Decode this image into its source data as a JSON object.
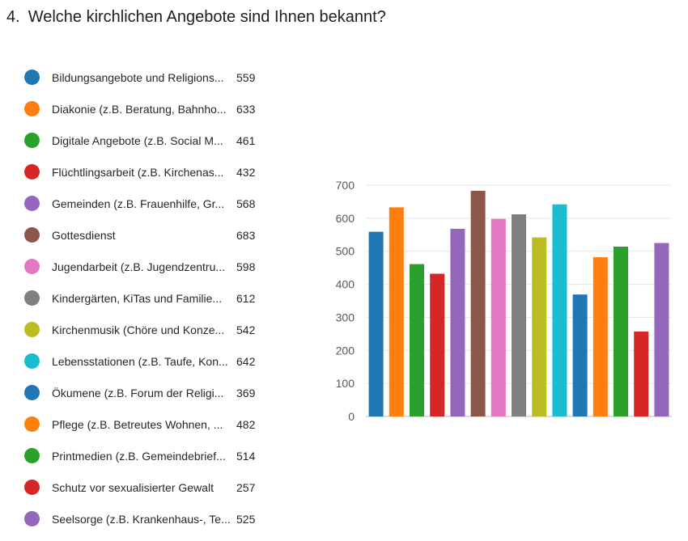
{
  "question": {
    "number": "4.",
    "text": "Welche kirchlichen Angebote sind Ihnen bekannt?"
  },
  "legend": [
    {
      "label": "Bildungsangebote und Religions...",
      "value": "559",
      "color": "#1f77b4"
    },
    {
      "label": "Diakonie (z.B. Beratung, Bahnho...",
      "value": "633",
      "color": "#ff7f0e"
    },
    {
      "label": "Digitale Angebote (z.B. Social M...",
      "value": "461",
      "color": "#2ca02c"
    },
    {
      "label": "Flüchtlingsarbeit (z.B. Kirchenas...",
      "value": "432",
      "color": "#d62728"
    },
    {
      "label": "Gemeinden (z.B. Frauenhilfe, Gr...",
      "value": "568",
      "color": "#9467bd"
    },
    {
      "label": "Gottesdienst",
      "value": "683",
      "color": "#8c564b"
    },
    {
      "label": "Jugendarbeit (z.B. Jugendzentru...",
      "value": "598",
      "color": "#e377c2"
    },
    {
      "label": "Kindergärten, KiTas und Familie...",
      "value": "612",
      "color": "#7f7f7f"
    },
    {
      "label": "Kirchenmusik (Chöre und Konze...",
      "value": "542",
      "color": "#bcbd22"
    },
    {
      "label": "Lebensstationen (z.B. Taufe, Kon...",
      "value": "642",
      "color": "#17becf"
    },
    {
      "label": "Ökumene (z.B. Forum der Religi...",
      "value": "369",
      "color": "#1f77b4"
    },
    {
      "label": "Pflege (z.B. Betreutes Wohnen, ...",
      "value": "482",
      "color": "#ff7f0e"
    },
    {
      "label": "Printmedien (z.B. Gemeindebrief...",
      "value": "514",
      "color": "#2ca02c"
    },
    {
      "label": "Schutz vor sexualisierter Gewalt",
      "value": "257",
      "color": "#d62728"
    },
    {
      "label": "Seelsorge (z.B. Krankenhaus-, Te...",
      "value": "525",
      "color": "#9467bd"
    }
  ],
  "chart_data": {
    "type": "bar",
    "title": "",
    "xlabel": "",
    "ylabel": "",
    "categories": [
      "Bildungsangebote und Religions...",
      "Diakonie (z.B. Beratung, Bahnho...",
      "Digitale Angebote (z.B. Social M...",
      "Flüchtlingsarbeit (z.B. Kirchenas...",
      "Gemeinden (z.B. Frauenhilfe, Gr...",
      "Gottesdienst",
      "Jugendarbeit (z.B. Jugendzentru...",
      "Kindergärten, KiTas und Familie...",
      "Kirchenmusik (Chöre und Konze...",
      "Lebensstationen (z.B. Taufe, Kon...",
      "Ökumene (z.B. Forum der Religi...",
      "Pflege (z.B. Betreutes Wohnen, ...",
      "Printmedien (z.B. Gemeindebrief...",
      "Schutz vor sexualisierter Gewalt",
      "Seelsorge (z.B. Krankenhaus-, Te..."
    ],
    "values": [
      559,
      633,
      461,
      432,
      568,
      683,
      598,
      612,
      542,
      642,
      369,
      482,
      514,
      257,
      525
    ],
    "colors": [
      "#1f77b4",
      "#ff7f0e",
      "#2ca02c",
      "#d62728",
      "#9467bd",
      "#8c564b",
      "#e377c2",
      "#7f7f7f",
      "#bcbd22",
      "#17becf",
      "#1f77b4",
      "#ff7f0e",
      "#2ca02c",
      "#d62728",
      "#9467bd"
    ],
    "ylim": [
      0,
      700
    ],
    "yticks": [
      "0",
      "100",
      "200",
      "300",
      "400",
      "500",
      "600",
      "700"
    ],
    "grid": true,
    "legend": "left"
  }
}
